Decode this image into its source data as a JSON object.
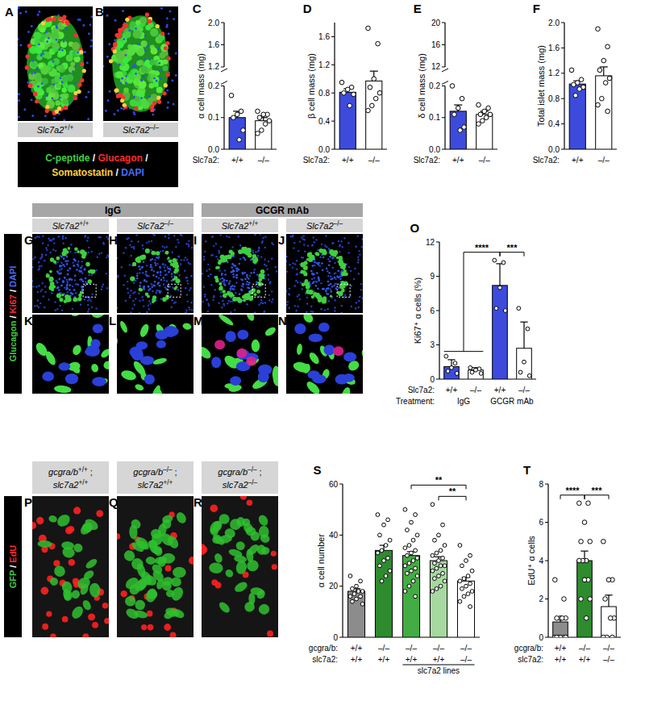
{
  "figure": {
    "row1": {
      "images": [
        {
          "panel": "A",
          "gene": "Slc7a2",
          "genotype": "+/+"
        },
        {
          "panel": "B",
          "gene": "Slc7a2",
          "genotype": "–/–"
        }
      ],
      "stains": [
        {
          "text": "C-peptide",
          "color": "#3fcf3f"
        },
        {
          "text": "Glucagon",
          "color": "#ff2a2a"
        },
        {
          "text": "Somatostatin",
          "color": "#ffd23c"
        },
        {
          "text": "DAPI",
          "color": "#4a6aff"
        }
      ],
      "separator": " / "
    },
    "row2": {
      "treatments": [
        {
          "text": "IgG",
          "members": [
            0,
            1
          ]
        },
        {
          "text": "GCGR mAb",
          "members": [
            2,
            3
          ]
        }
      ],
      "images": [
        {
          "panel": "G",
          "gene": "Slc7a2",
          "genotype": "+/+"
        },
        {
          "panel": "H",
          "gene": "Slc7a2",
          "genotype": "–/–"
        },
        {
          "panel": "I",
          "gene": "Slc7a2",
          "genotype": "+/+"
        },
        {
          "panel": "J",
          "gene": "Slc7a2",
          "genotype": "–/–"
        }
      ],
      "zooms": [
        {
          "panel": "K"
        },
        {
          "panel": "L"
        },
        {
          "panel": "M"
        },
        {
          "panel": "N"
        }
      ],
      "stains": [
        {
          "text": "Glucagon",
          "color": "#3fcf3f"
        },
        {
          "text": "Ki67",
          "color": "#ff2a2a"
        },
        {
          "text": "DAPI",
          "color": "#4a6aff"
        }
      ],
      "separator": " / "
    },
    "row3": {
      "images": [
        {
          "panel": "P",
          "labels": [
            {
              "gene": "gcgra/b",
              "genotype": "+/+"
            },
            {
              "gene": "slc7a2",
              "genotype": "+/+"
            }
          ]
        },
        {
          "panel": "Q",
          "labels": [
            {
              "gene": "gcgra/b",
              "genotype": "–/–"
            },
            {
              "gene": "slc7a2",
              "genotype": "+/+"
            }
          ]
        },
        {
          "panel": "R",
          "labels": [
            {
              "gene": "gcgra/b",
              "genotype": "–/–"
            },
            {
              "gene": "slc7a2",
              "genotype": "–/–"
            }
          ]
        }
      ],
      "joiner": " ;",
      "stains": [
        {
          "text": "GFP",
          "color": "#3fcf3f"
        },
        {
          "text": "EdU",
          "color": "#ff2a2a"
        }
      ],
      "separator": " / "
    }
  },
  "chart_data": [
    {
      "type": "bar",
      "panel": "C",
      "ylabel": "α cell mass (mg)",
      "ylim": [
        0,
        2
      ],
      "ybreak": [
        0.2,
        1.2
      ],
      "yticks": [
        {
          "value": 0,
          "label": "0.0"
        },
        0.1,
        0.2,
        1.2,
        1.6,
        {
          "value": 2,
          "label": "2.0"
        }
      ],
      "x_rows": [
        {
          "label": "Slc7a2:",
          "values": [
            "+/+",
            "–/–"
          ]
        }
      ],
      "values": [
        0.1,
        0.09
      ],
      "errors": [
        0.02,
        0.01
      ],
      "colors": [
        "#3d4bdc",
        "#ffffff"
      ],
      "points": [
        [
          0.17,
          0.12,
          0.11,
          0.1,
          0.06,
          0.03
        ],
        [
          0.12,
          0.11,
          0.11,
          0.1,
          0.09,
          0.08,
          0.06,
          0.05
        ]
      ]
    },
    {
      "type": "bar",
      "panel": "D",
      "ylabel": "β cell mass (mg)",
      "ylim": [
        0,
        1.8
      ],
      "yticks": [
        {
          "value": 0,
          "label": "0.0"
        },
        0.4,
        0.8,
        1.2,
        1.6
      ],
      "x_rows": [
        {
          "label": "Slc7a2:",
          "values": [
            "+/+",
            "–/–"
          ]
        }
      ],
      "values": [
        0.81,
        0.97
      ],
      "errors": [
        0.05,
        0.14
      ],
      "colors": [
        "#3d4bdc",
        "#ffffff"
      ],
      "points": [
        [
          0.95,
          0.88,
          0.85,
          0.8,
          0.78,
          0.62
        ],
        [
          1.72,
          1.5,
          1.0,
          0.88,
          0.8,
          0.72,
          0.62,
          0.55
        ]
      ]
    },
    {
      "type": "bar",
      "panel": "E",
      "ylabel": "δ cell mass (mg)",
      "ylim": [
        0,
        20
      ],
      "ybreak": [
        0.2,
        12
      ],
      "yticks": [
        {
          "value": 0,
          "label": "0.0"
        },
        0.1,
        0.2,
        12,
        16,
        20
      ],
      "x_rows": [
        {
          "label": "Slc7a2:",
          "values": [
            "+/+",
            "–/–"
          ]
        }
      ],
      "values": [
        0.12,
        0.11
      ],
      "errors": [
        0.02,
        0.01
      ],
      "colors": [
        "#3d4bdc",
        "#ffffff"
      ],
      "points": [
        [
          0.2,
          0.16,
          0.13,
          0.11,
          0.07,
          0.06
        ],
        [
          0.14,
          0.13,
          0.12,
          0.11,
          0.11,
          0.1,
          0.09,
          0.08
        ]
      ]
    },
    {
      "type": "bar",
      "panel": "F",
      "ylabel": "Total islet mass (mg)",
      "ylim": [
        0,
        2
      ],
      "yticks": [
        {
          "value": 0,
          "label": "0.0"
        },
        0.4,
        0.8,
        1.2,
        1.6,
        {
          "value": 2,
          "label": "2.0"
        }
      ],
      "x_rows": [
        {
          "label": "Slc7a2:",
          "values": [
            "+/+",
            "–/–"
          ]
        }
      ],
      "values": [
        1.03,
        1.16
      ],
      "errors": [
        0.05,
        0.14
      ],
      "colors": [
        "#3d4bdc",
        "#ffffff"
      ],
      "points": [
        [
          1.25,
          1.1,
          1.05,
          1.02,
          0.98,
          0.95,
          0.85
        ],
        [
          1.9,
          1.62,
          1.4,
          1.25,
          1.12,
          1.05,
          0.8,
          0.7,
          0.6
        ]
      ]
    },
    {
      "type": "bar",
      "panel": "O",
      "ylabel": "Ki67⁺ α cells (%)",
      "ylim": [
        0,
        12
      ],
      "yticks": [
        0,
        3,
        6,
        9,
        12
      ],
      "x_rows": [
        {
          "label": "Slc7a2:",
          "values": [
            "+/+",
            "–/–",
            "+/+",
            "–/–"
          ]
        },
        {
          "label": "Treatment:",
          "groups": [
            {
              "text": "IgG",
              "members": [
                0,
                1
              ]
            },
            {
              "text": "GCGR mAb",
              "members": [
                2,
                3
              ]
            }
          ]
        }
      ],
      "values": [
        1.1,
        0.8,
        8.2,
        2.7
      ],
      "errors": [
        0.6,
        0.2,
        1.9,
        2.3
      ],
      "colors": [
        "#3d4bdc",
        "#ffffff",
        "#3d4bdc",
        "#ffffff"
      ],
      "points": [
        [
          2.0,
          1.4,
          1.0,
          0.7,
          0.5
        ],
        [
          1.0,
          0.9,
          0.8,
          0.6,
          0.5
        ],
        [
          10.4,
          10.2,
          8.0,
          6.2,
          6.0
        ],
        [
          6.2,
          4.4,
          1.5,
          0.6,
          0.3
        ]
      ],
      "significance": [
        {
          "from": [
            0,
            1
          ],
          "to": [
            2
          ],
          "label": "****"
        },
        {
          "from": [
            2
          ],
          "to": [
            3
          ],
          "label": "***"
        }
      ]
    },
    {
      "type": "bar",
      "panel": "S",
      "ylabel": "α cell number",
      "ylim": [
        0,
        60
      ],
      "yticks": [
        0,
        20,
        40,
        60
      ],
      "x_rows": [
        {
          "label": "gcgra/b:",
          "values": [
            "+/+",
            "–/–",
            "–/–",
            "–/–",
            "–/–"
          ]
        },
        {
          "label": "slc7a2:",
          "values": [
            "+/+",
            "+/+",
            "+/+",
            "+/+",
            "–/–"
          ]
        },
        {
          "groups": [
            {
              "text": "slc7a2 lines",
              "members": [
                2,
                3,
                4
              ]
            }
          ]
        }
      ],
      "values": [
        18,
        34,
        32,
        30,
        22
      ],
      "errors": [
        1.0,
        2.0,
        1.5,
        1.5,
        1.5
      ],
      "colors": [
        "#8c8c8c",
        "#2e8b2e",
        "#43ad43",
        "#a6d9a0",
        "#ffffff"
      ],
      "points": [
        [
          24,
          22,
          20,
          19,
          18,
          18,
          17,
          16,
          16,
          15,
          14,
          13
        ],
        [
          48,
          46,
          44,
          40,
          38,
          36,
          34,
          33,
          31,
          30,
          28,
          26,
          24,
          22
        ],
        [
          50,
          48,
          45,
          42,
          40,
          38,
          36,
          35,
          34,
          33,
          32,
          31,
          30,
          29,
          28,
          27,
          26,
          25,
          24,
          22,
          20,
          18,
          16
        ],
        [
          52,
          44,
          40,
          38,
          36,
          34,
          33,
          32,
          31,
          30,
          29,
          28,
          28,
          27,
          26,
          25,
          24,
          23,
          22,
          20,
          19,
          18
        ],
        [
          36,
          32,
          30,
          28,
          26,
          24,
          23,
          22,
          21,
          20,
          19,
          18,
          17,
          16,
          14,
          12
        ]
      ],
      "significance": [
        {
          "from": [
            3
          ],
          "to": [
            4
          ],
          "label": "**"
        },
        {
          "from": [
            2
          ],
          "to": [
            4
          ],
          "label": "**"
        }
      ]
    },
    {
      "type": "bar",
      "panel": "T",
      "ylabel": "EdU⁺ α cells",
      "ylim": [
        0,
        8
      ],
      "yticks": [
        0,
        2,
        4,
        6,
        8
      ],
      "x_rows": [
        {
          "label": "gcgra/b:",
          "values": [
            "+/+",
            "–/–",
            "–/–"
          ]
        },
        {
          "label": "slc7a2:",
          "values": [
            "+/+",
            "+/+",
            "–/–"
          ]
        }
      ],
      "values": [
        0.8,
        4.0,
        1.6
      ],
      "errors": [
        0.25,
        0.5,
        0.6
      ],
      "colors": [
        "#8c8c8c",
        "#2e8b2e",
        "#ffffff"
      ],
      "points": [
        [
          3,
          2,
          1,
          1,
          1,
          1,
          0,
          0,
          0,
          0,
          0,
          0
        ],
        [
          7,
          7,
          6,
          5,
          5,
          4,
          4,
          4,
          3,
          3,
          2,
          2,
          1
        ],
        [
          5,
          3,
          3,
          2,
          1,
          1,
          0,
          0,
          0
        ]
      ],
      "significance": [
        {
          "from": [
            0
          ],
          "to": [
            1
          ],
          "label": "****"
        },
        {
          "from": [
            1
          ],
          "to": [
            2
          ],
          "label": "***"
        }
      ]
    }
  ]
}
